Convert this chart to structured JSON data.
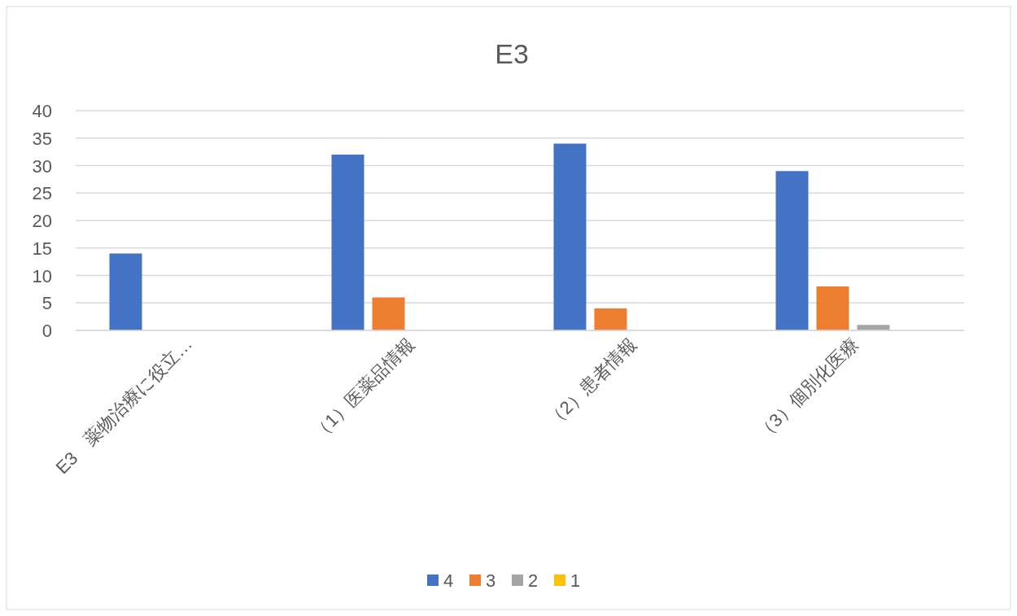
{
  "chart_data": {
    "type": "bar",
    "title": "E3",
    "categories": [
      "E3　薬物治療に役立…",
      "（1）医薬品情報",
      "（2）患者情報",
      "（3）個別化医療"
    ],
    "series": [
      {
        "name": "4",
        "color": "#4472c4",
        "values": [
          14,
          32,
          34,
          29
        ]
      },
      {
        "name": "3",
        "color": "#ed7d31",
        "values": [
          0,
          6,
          4,
          8
        ]
      },
      {
        "name": "2",
        "color": "#a5a5a5",
        "values": [
          0,
          0,
          0,
          1
        ]
      },
      {
        "name": "1",
        "color": "#ffc000",
        "values": [
          0,
          0,
          0,
          0
        ]
      }
    ],
    "ylim": [
      0,
      40
    ],
    "yticks": [
      0,
      5,
      10,
      15,
      20,
      25,
      30,
      35,
      40
    ],
    "grid": "y",
    "legend": "bottom"
  }
}
